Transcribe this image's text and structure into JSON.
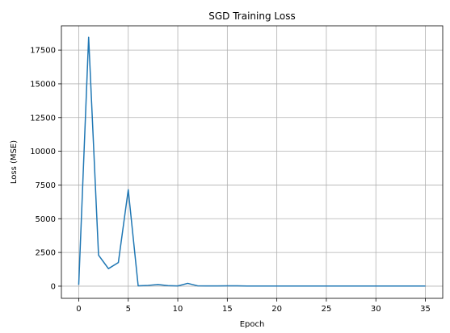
{
  "chart_data": {
    "type": "line",
    "title": "SGD Training Loss",
    "xlabel": "Epoch",
    "ylabel": "Loss (MSE)",
    "xlim": [
      -1.75,
      36.75
    ],
    "ylim": [
      -900,
      19300
    ],
    "x_ticks": [
      0,
      5,
      10,
      15,
      20,
      25,
      30,
      35
    ],
    "y_ticks": [
      0,
      2500,
      5000,
      7500,
      10000,
      12500,
      15000,
      17500
    ],
    "grid": true,
    "series": [
      {
        "color": "#1f77b4",
        "x": [
          0,
          1,
          2,
          3,
          4,
          5,
          6,
          7,
          8,
          9,
          10,
          11,
          12,
          13,
          14,
          15,
          16,
          17,
          18,
          19,
          20,
          21,
          22,
          23,
          24,
          25,
          26,
          27,
          28,
          29,
          30,
          31,
          32,
          33,
          34,
          35
        ],
        "values": [
          100,
          18450,
          2300,
          1300,
          1750,
          7150,
          30,
          60,
          120,
          40,
          20,
          210,
          30,
          20,
          20,
          30,
          25,
          10,
          10,
          10,
          10,
          10,
          10,
          10,
          10,
          10,
          10,
          10,
          10,
          10,
          10,
          10,
          10,
          10,
          10,
          10
        ]
      }
    ]
  }
}
